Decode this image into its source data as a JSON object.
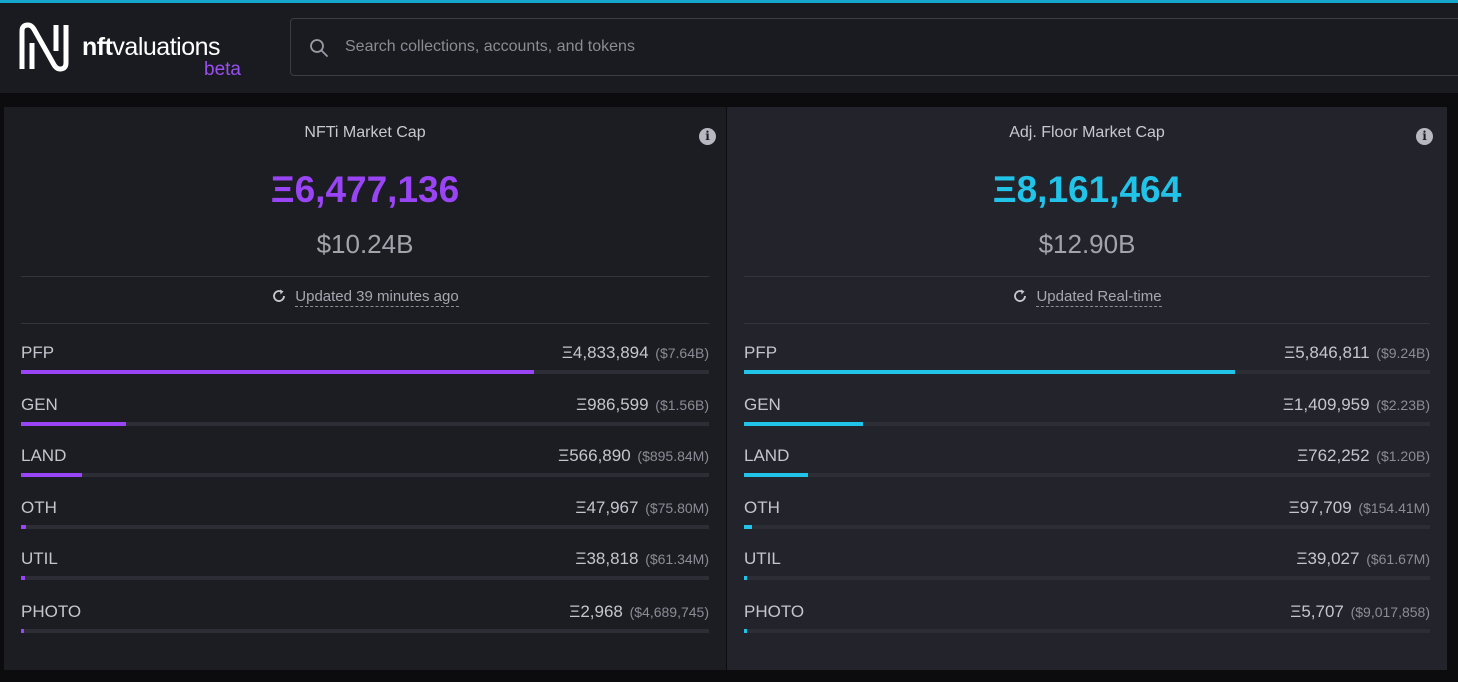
{
  "app": {
    "brand_bold": "nft",
    "brand_rest": "valuations",
    "beta_label": "beta",
    "logo_icon": "nftvaluations-logo-icon",
    "accent_color": "#14a6cc"
  },
  "search": {
    "placeholder": "Search collections, accounts, and tokens",
    "icon": "search-icon"
  },
  "panels": [
    {
      "title": "NFTi Market Cap",
      "eth_value": "Ξ6,477,136",
      "usd_value": "$10.24B",
      "updated_text": "Updated 39 minutes ago",
      "accent": "#9a45f5",
      "categories": [
        {
          "label": "PFP",
          "eth": "Ξ4,833,894",
          "usd": "($7.64B)",
          "share": 0.746
        },
        {
          "label": "GEN",
          "eth": "Ξ986,599",
          "usd": "($1.56B)",
          "share": 0.152
        },
        {
          "label": "LAND",
          "eth": "Ξ566,890",
          "usd": "($895.84M)",
          "share": 0.088
        },
        {
          "label": "OTH",
          "eth": "Ξ47,967",
          "usd": "($75.80M)",
          "share": 0.0074
        },
        {
          "label": "UTIL",
          "eth": "Ξ38,818",
          "usd": "($61.34M)",
          "share": 0.006
        },
        {
          "label": "PHOTO",
          "eth": "Ξ2,968",
          "usd": "($4,689,745)",
          "share": 0.00046
        }
      ]
    },
    {
      "title": "Adj. Floor Market Cap",
      "eth_value": "Ξ8,161,464",
      "usd_value": "$12.90B",
      "updated_text": "Updated Real-time",
      "accent": "#22c3e8",
      "categories": [
        {
          "label": "PFP",
          "eth": "Ξ5,846,811",
          "usd": "($9.24B)",
          "share": 0.716
        },
        {
          "label": "GEN",
          "eth": "Ξ1,409,959",
          "usd": "($2.23B)",
          "share": 0.173
        },
        {
          "label": "LAND",
          "eth": "Ξ762,252",
          "usd": "($1.20B)",
          "share": 0.093
        },
        {
          "label": "OTH",
          "eth": "Ξ97,709",
          "usd": "($154.41M)",
          "share": 0.012
        },
        {
          "label": "UTIL",
          "eth": "Ξ39,027",
          "usd": "($61.67M)",
          "share": 0.0048
        },
        {
          "label": "PHOTO",
          "eth": "Ξ5,707",
          "usd": "($9,017,858)",
          "share": 0.0007
        }
      ]
    }
  ]
}
